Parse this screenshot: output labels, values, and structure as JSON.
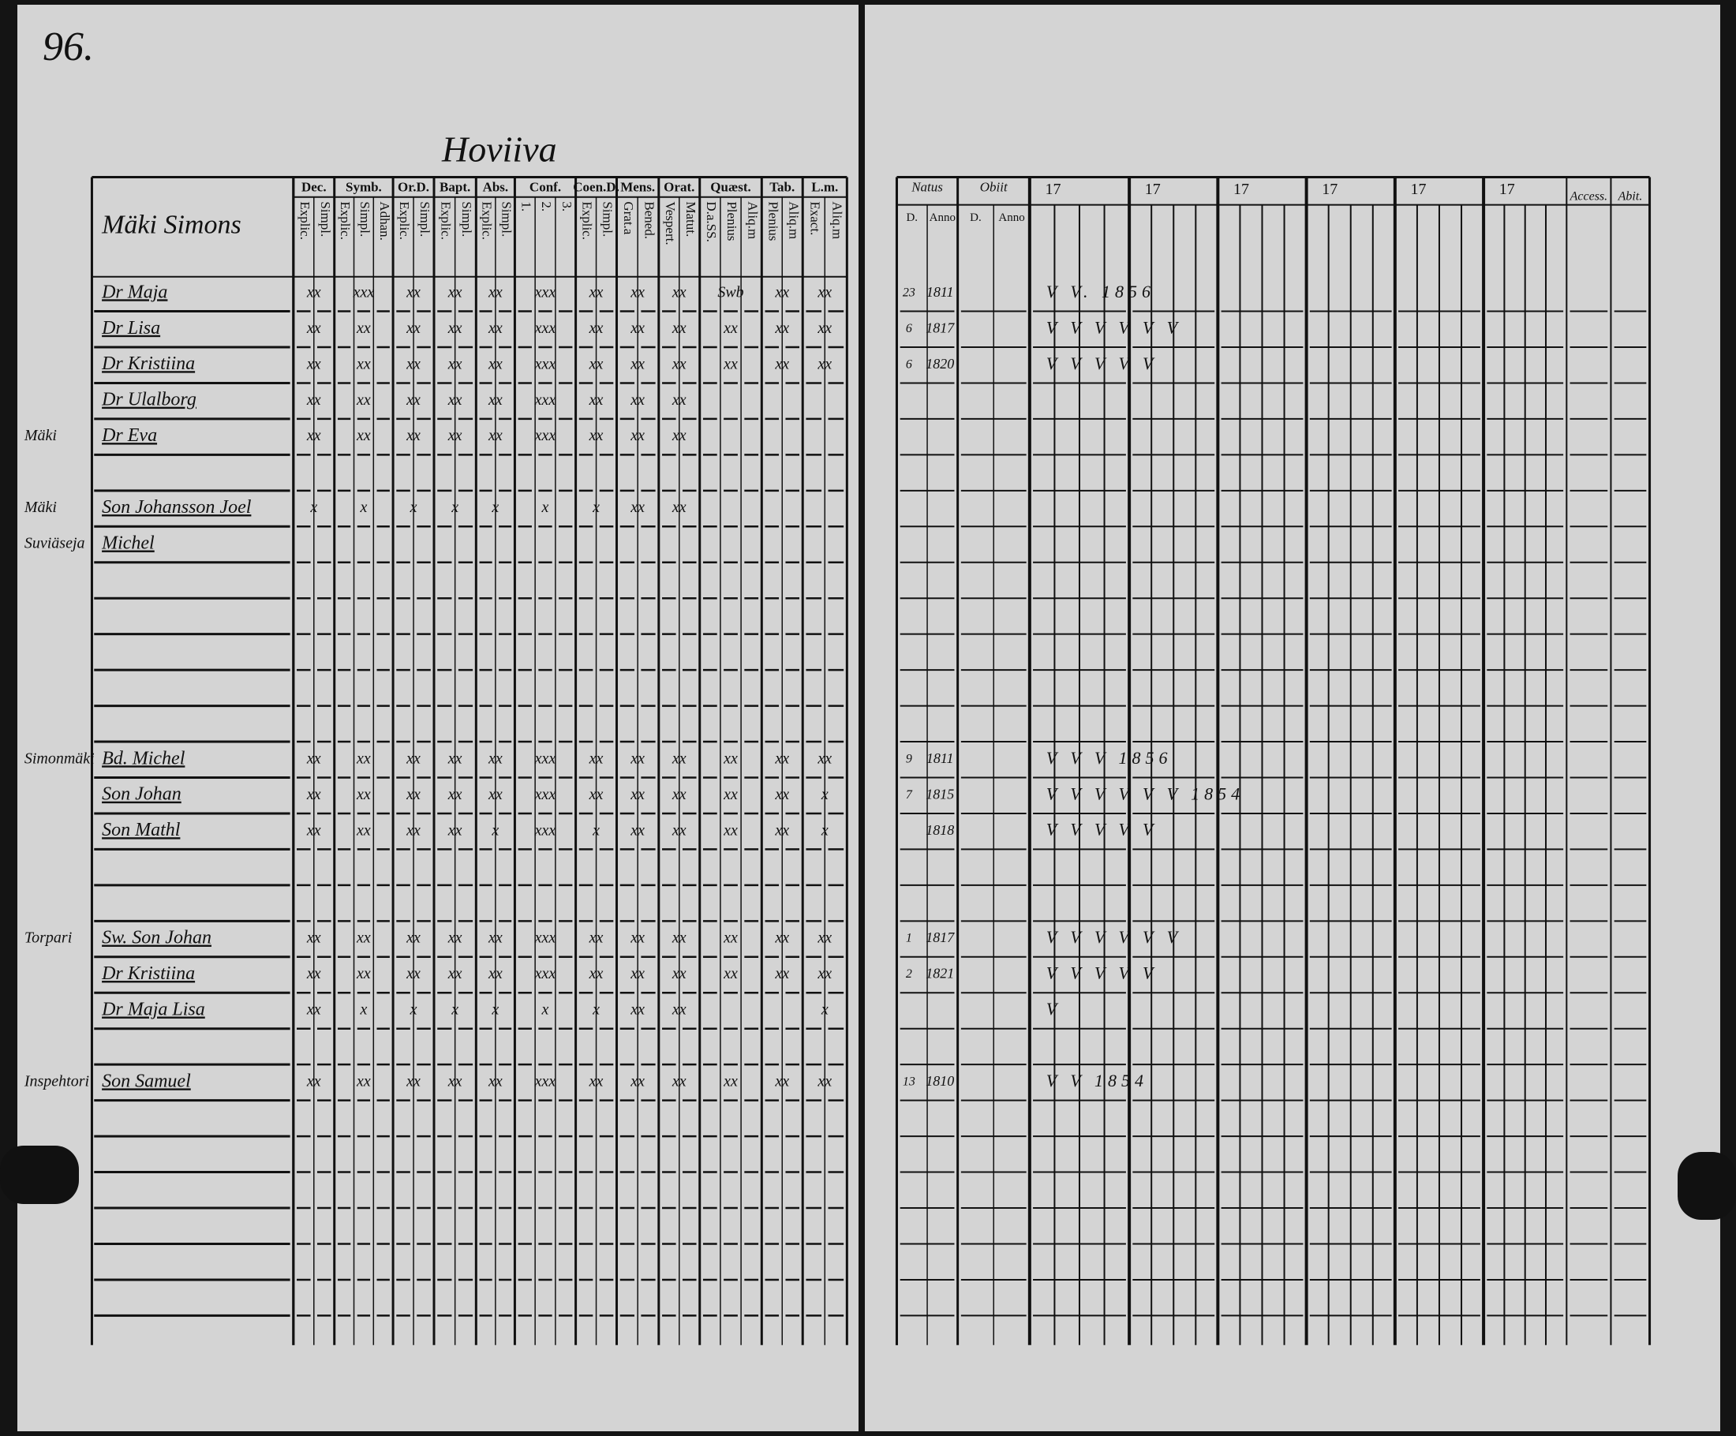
{
  "page_number": "96.",
  "place_title": "Hoviiva",
  "left_header": {
    "name_column": "Mäki Simons",
    "groups": [
      {
        "label": "Dec.",
        "subs": [
          "Explic.",
          "Simpl."
        ]
      },
      {
        "label": "Symb.",
        "subs": [
          "Explic.",
          "Simpl.",
          "Adhan."
        ]
      },
      {
        "label": "Or.D.",
        "subs": [
          "Explic.",
          "Simpl."
        ]
      },
      {
        "label": "Bapt.",
        "subs": [
          "Explic.",
          "Simpl."
        ]
      },
      {
        "label": "Abs.",
        "subs": [
          "Explic.",
          "Simpl."
        ]
      },
      {
        "label": "Conf.",
        "subs": [
          "1.",
          "2.",
          "3."
        ]
      },
      {
        "label": "Coen.D.",
        "subs": [
          "Explic.",
          "Simpl."
        ]
      },
      {
        "label": "Mens.",
        "subs": [
          "Grat.a",
          "Bened."
        ]
      },
      {
        "label": "Orat.",
        "subs": [
          "Vespert.",
          "Matut."
        ]
      },
      {
        "label": "Quæst.",
        "subs": [
          "D.a.SS.",
          "Plenius",
          "Aliq.m"
        ]
      },
      {
        "label": "Tab.",
        "subs": [
          "Plenius",
          "Aliq.m"
        ]
      },
      {
        "label": "L.m.",
        "subs": [
          "Exact.",
          "Aliq.m"
        ]
      }
    ]
  },
  "right_header": {
    "natus": {
      "label": "Natus",
      "subs": [
        "D.",
        "Anno"
      ]
    },
    "obiit": {
      "label": "Obiit",
      "subs": [
        "D.",
        "Anno"
      ]
    },
    "years": [
      "17",
      "17",
      "17",
      "17",
      "17",
      "17"
    ],
    "access": "Access.",
    "abit": "Abit."
  },
  "rows": [
    {
      "margin": null,
      "name": "Dr Maja",
      "marks": [
        "xx",
        "xxx",
        "xx",
        "xx",
        "xx",
        "xxx",
        "xx",
        "xx",
        "xx",
        "Swb",
        "xx",
        "xx"
      ],
      "day": "23",
      "year": "1811",
      "notes": "V V. 1856"
    },
    {
      "margin": null,
      "name": "Dr Lisa",
      "marks": [
        "xx",
        "xx",
        "xx",
        "xx",
        "xx",
        "xxx",
        "xx",
        "xx",
        "xx",
        "xx",
        "xx",
        "xx"
      ],
      "day": "6",
      "year": "1817",
      "notes": "V V V V V V"
    },
    {
      "margin": null,
      "name": "Dr Kristiina",
      "marks": [
        "xx",
        "xx",
        "xx",
        "xx",
        "xx",
        "xxx",
        "xx",
        "xx",
        "xx",
        "xx",
        "xx",
        "xx"
      ],
      "day": "6",
      "year": "1820",
      "notes": "V V V V V"
    },
    {
      "margin": null,
      "name": "Dr Ulalborg",
      "marks": [
        "xx",
        "xx",
        "xx",
        "xx",
        "xx",
        "xxx",
        "xx",
        "xx",
        "xx",
        null,
        null,
        null
      ],
      "day": null,
      "year": null,
      "notes": null
    },
    {
      "margin": "Mäki",
      "name": "Dr Eva",
      "marks": [
        "xx",
        "xx",
        "xx",
        "xx",
        "xx",
        "xxx",
        "xx",
        "xx",
        "xx",
        null,
        null,
        null
      ],
      "day": null,
      "year": null,
      "notes": null
    },
    {
      "margin": "Mäki",
      "name": "Son Johansson Joel",
      "marks": [
        "x",
        "x",
        "x",
        "x",
        "x",
        "x",
        "x",
        "xx",
        "xx",
        null,
        null,
        null
      ],
      "day": null,
      "year": null,
      "notes": null
    },
    {
      "margin": "Suviäseja",
      "name": "Michel",
      "marks": null,
      "day": null,
      "year": null,
      "notes": null
    },
    {
      "margin": "Simonmäki",
      "name": "Bd. Michel",
      "marks": [
        "xx",
        "xx",
        "xx",
        "xx",
        "xx",
        "xxx",
        "xx",
        "xx",
        "xx",
        "xx",
        "xx",
        "xx"
      ],
      "day": "9",
      "year": "1811",
      "notes": "V V V 1856"
    },
    {
      "margin": null,
      "name": "Son Johan",
      "marks": [
        "xx",
        "xx",
        "xx",
        "xx",
        "xx",
        "xxx",
        "xx",
        "xx",
        "xx",
        "xx",
        "xx",
        "x"
      ],
      "day": "7",
      "year": "1815",
      "notes": "V V V V V V 1854"
    },
    {
      "margin": null,
      "name": "Son Mathl",
      "marks": [
        "xx",
        "xx",
        "xx",
        "xx",
        "x",
        "xxx",
        "x",
        "xx",
        "xx",
        "xx",
        "xx",
        "x"
      ],
      "day": null,
      "year": "1818",
      "notes": "V V V V V"
    },
    {
      "margin": "Torpari",
      "name": "Sw. Son Johan",
      "marks": [
        "xx",
        "xx",
        "xx",
        "xx",
        "xx",
        "xxx",
        "xx",
        "xx",
        "xx",
        "xx",
        "xx",
        "xx"
      ],
      "day": "1",
      "year": "1817",
      "notes": "V V V V V V"
    },
    {
      "margin": null,
      "name": "Dr Kristiina",
      "marks": [
        "xx",
        "xx",
        "xx",
        "xx",
        "xx",
        "xxx",
        "xx",
        "xx",
        "xx",
        "xx",
        "xx",
        "xx"
      ],
      "day": "2",
      "year": "1821",
      "notes": "V V V V V"
    },
    {
      "margin": null,
      "name": "Dr Maja Lisa",
      "marks": [
        "xx",
        "x",
        "x",
        "x",
        "x",
        "x",
        "x",
        "xx",
        "xx",
        null,
        null,
        "x"
      ],
      "day": null,
      "year": null,
      "notes": "V"
    },
    {
      "margin": "Inspehtori",
      "name": "Son Samuel",
      "marks": [
        "xx",
        "xx",
        "xx",
        "xx",
        "xx",
        "xxx",
        "xx",
        "xx",
        "xx",
        "xx",
        "xx",
        "xx"
      ],
      "day": "13",
      "year": "1810",
      "notes": "V V 1854"
    }
  ]
}
